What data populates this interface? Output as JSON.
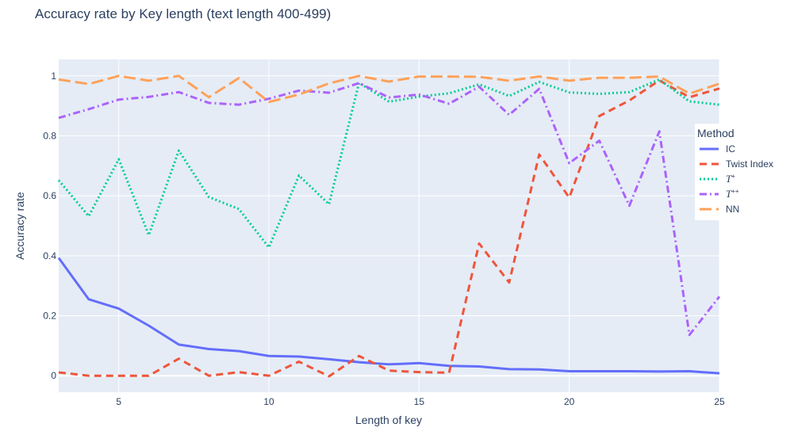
{
  "chart_data": {
    "type": "line",
    "title": "Accuracy rate by Key length (text length 400-499)",
    "xlabel": "Length of key",
    "ylabel": "Accuracy rate",
    "xlim": [
      3,
      25
    ],
    "ylim": [
      -0.055,
      1.055
    ],
    "x_ticks": [
      5,
      10,
      15,
      20,
      25
    ],
    "y_ticks": [
      0,
      0.2,
      0.4,
      0.6,
      0.8,
      1
    ],
    "x_tick_labels": [
      "5",
      "10",
      "15",
      "20",
      "25"
    ],
    "y_tick_labels": [
      "0",
      "0.2",
      "0.4",
      "0.6",
      "0.8",
      "1"
    ],
    "grid": true,
    "legend_title": "Method",
    "legend_position": "right",
    "x": [
      3,
      4,
      5,
      6,
      7,
      8,
      9,
      10,
      11,
      12,
      13,
      14,
      15,
      16,
      17,
      18,
      19,
      20,
      21,
      22,
      23,
      24,
      25
    ],
    "series": [
      {
        "name": "IC",
        "label_main": "IC",
        "label_sup": "",
        "color": "#636efa",
        "dash": "solid",
        "values": [
          0.393,
          0.255,
          0.224,
          0.167,
          0.104,
          0.089,
          0.082,
          0.066,
          0.064,
          0.055,
          0.045,
          0.038,
          0.042,
          0.033,
          0.031,
          0.022,
          0.021,
          0.015,
          0.015,
          0.015,
          0.014,
          0.015,
          0.008
        ]
      },
      {
        "name": "Twist Index",
        "label_main": "Twist Index",
        "label_sup": "",
        "color": "#ef553b",
        "dash": "dash",
        "values": [
          0.011,
          0.0,
          0.0,
          0.0,
          0.057,
          0.0,
          0.012,
          0.0,
          0.047,
          -0.002,
          0.066,
          0.017,
          0.012,
          0.01,
          0.441,
          0.311,
          0.738,
          0.594,
          0.866,
          0.918,
          0.985,
          0.929,
          0.958
        ]
      },
      {
        "name": "T+",
        "label_main": "T",
        "label_sup": "+",
        "color": "#00cc96",
        "dash": "dot",
        "values": [
          0.652,
          0.532,
          0.722,
          0.469,
          0.751,
          0.596,
          0.556,
          0.428,
          0.668,
          0.572,
          0.977,
          0.914,
          0.931,
          0.942,
          0.972,
          0.933,
          0.98,
          0.945,
          0.94,
          0.946,
          0.988,
          0.915,
          0.904
        ]
      },
      {
        "name": "T++",
        "label_main": "T",
        "label_sup": "++",
        "color": "#ab63fa",
        "dash": "dashdot",
        "values": [
          0.86,
          0.889,
          0.921,
          0.93,
          0.946,
          0.91,
          0.904,
          0.924,
          0.951,
          0.944,
          0.976,
          0.928,
          0.938,
          0.907,
          0.964,
          0.87,
          0.957,
          0.709,
          0.784,
          0.567,
          0.815,
          0.136,
          0.264
        ]
      },
      {
        "name": "NN",
        "label_main": "NN",
        "label_sup": "",
        "color": "#ffa15a",
        "dash": "longdash",
        "values": [
          0.988,
          0.973,
          1.0,
          0.984,
          1.0,
          0.929,
          0.993,
          0.913,
          0.938,
          0.975,
          1.0,
          0.981,
          0.998,
          0.998,
          0.997,
          0.984,
          0.998,
          0.984,
          0.994,
          0.994,
          0.998,
          0.941,
          0.974
        ]
      }
    ]
  }
}
